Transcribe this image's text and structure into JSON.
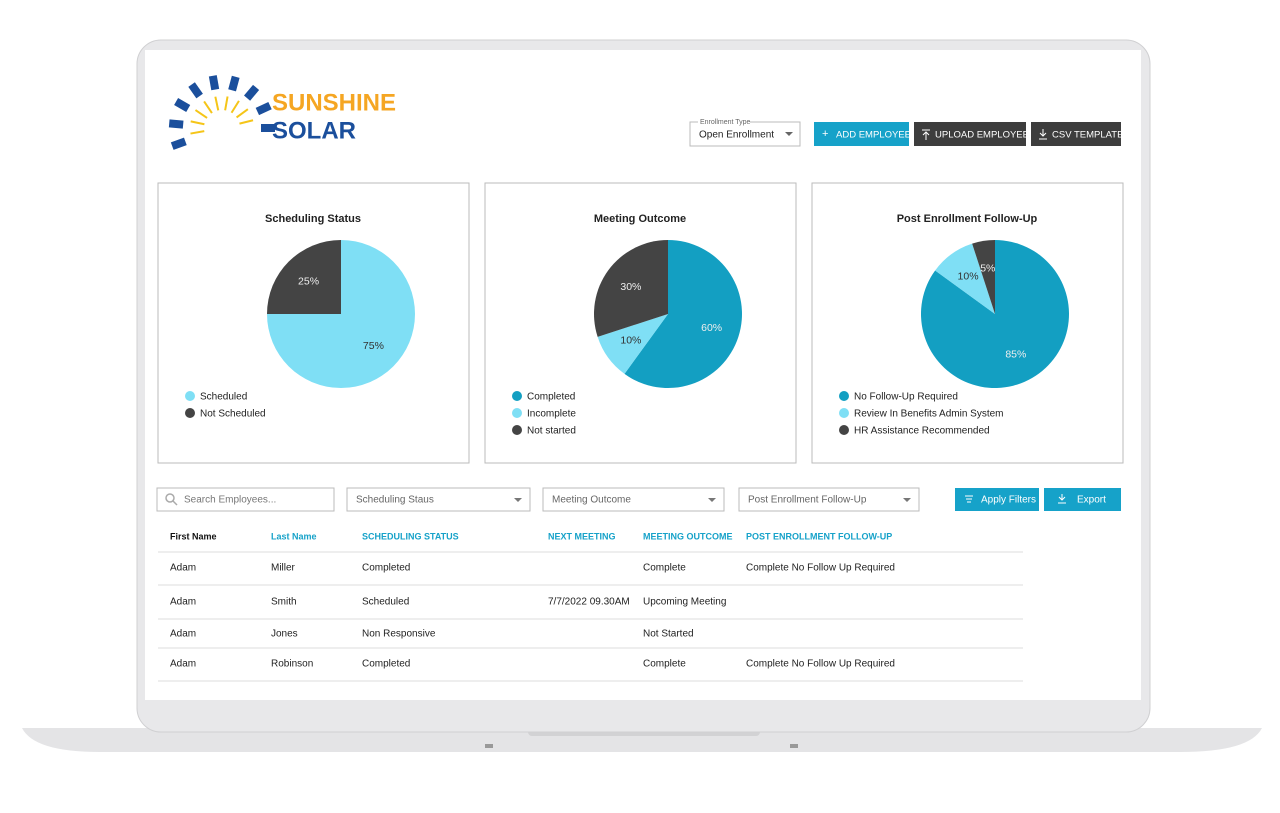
{
  "header": {
    "brand_line1": "SUNSHINE",
    "brand_line2": "SOLAR",
    "enrollment_label": "Enrollment Type",
    "enrollment_value": "Open Enrollment",
    "buttons": [
      "ADD EMPLOYEE",
      "UPLOAD EMPLOYEES",
      "CSV TEMPLATE"
    ]
  },
  "charts": [
    {
      "type": "pie",
      "title": "Scheduling Status",
      "categories": [
        "Scheduled",
        "Not Scheduled"
      ],
      "values": [
        75,
        25
      ],
      "value_labels": [
        "75%",
        "25%"
      ],
      "colors": [
        "#7fdff5",
        "#444444"
      ]
    },
    {
      "type": "pie",
      "title": "Meeting Outcome",
      "categories": [
        "Completed",
        "Incomplete",
        "Not started"
      ],
      "values": [
        60,
        10,
        30
      ],
      "value_labels": [
        "60%",
        "10%",
        "30%"
      ],
      "colors": [
        "#139fc2",
        "#7fdff5",
        "#444444"
      ]
    },
    {
      "type": "pie",
      "title": "Post Enrollment Follow-Up",
      "categories": [
        "No Follow-Up Required",
        "Review In Benefits Admin System",
        "HR Assistance Recommended"
      ],
      "values": [
        85,
        10,
        5
      ],
      "value_labels": [
        "85%",
        "10%",
        "5%"
      ],
      "colors": [
        "#139fc2",
        "#7fdff5",
        "#444444"
      ]
    }
  ],
  "filters": {
    "search_placeholder": "Search Employees...",
    "dropdowns": [
      "Scheduling Staus",
      "Meeting Outcome",
      "Post Enrollment Follow-Up"
    ],
    "buttons": [
      "Apply Filters",
      "Export"
    ]
  },
  "table": {
    "columns": [
      "First Name",
      "Last Name",
      "SCHEDULING STATUS",
      "NEXT MEETING",
      "MEETING OUTCOME",
      "POST ENROLLMENT FOLLOW-UP"
    ],
    "rows": [
      [
        "Adam",
        "Miller",
        "Completed",
        null,
        "Complete",
        "Complete No Follow Up Required"
      ],
      [
        "Adam",
        "Smith",
        "Scheduled",
        "7/7/2022 09.30AM",
        "Upcoming Meeting",
        null
      ],
      [
        "Adam",
        "Jones",
        "Non Responsive",
        null,
        "Not Started",
        null
      ],
      [
        "Adam",
        "Robinson",
        "Completed",
        null,
        "Complete",
        "Complete No Follow Up Required"
      ]
    ]
  }
}
